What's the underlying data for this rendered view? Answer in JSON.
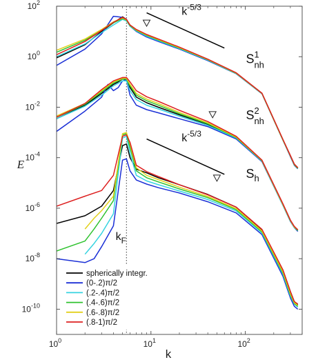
{
  "chart_data": {
    "type": "line",
    "xlabel": "k",
    "ylabel": "E",
    "xscale": "log",
    "yscale": "log",
    "xlim": [
      1,
      400
    ],
    "ylim": [
      1e-11,
      100
    ],
    "x_ticks": [
      {
        "value": 1,
        "base": "10",
        "exp": "0"
      },
      {
        "value": 10,
        "base": "10",
        "exp": "1"
      },
      {
        "value": 100,
        "base": "10",
        "exp": "2"
      }
    ],
    "y_ticks": [
      {
        "value": 100,
        "base": "10",
        "exp": "2"
      },
      {
        "value": 1,
        "base": "10",
        "exp": "0"
      },
      {
        "value": 0.01,
        "base": "10",
        "exp": "-2"
      },
      {
        "value": 0.0001,
        "base": "10",
        "exp": "-4"
      },
      {
        "value": 1e-06,
        "base": "10",
        "exp": "-6"
      },
      {
        "value": 1e-08,
        "base": "10",
        "exp": "-8"
      },
      {
        "value": 1e-10,
        "base": "10",
        "exp": "-10"
      }
    ],
    "forcing_line": {
      "x": 5.5,
      "label": "k",
      "sub": "F"
    },
    "slope_lines": [
      {
        "x": [
          9,
          60
        ],
        "y": [
          55,
          2.2
        ],
        "label": "k",
        "sup": "-5/3",
        "label_x": 25,
        "label_y": 45
      },
      {
        "x": [
          9,
          60
        ],
        "y": [
          0.00055,
          2.2e-05
        ],
        "label": "k",
        "sup": "-5/3",
        "label_x": 25,
        "label_y": 0.00045
      }
    ],
    "group_labels": [
      {
        "text": "S",
        "sup": "1",
        "sub": "nh",
        "x": 120,
        "y": 0.55
      },
      {
        "text": "S",
        "sup": "2",
        "sub": "nh",
        "x": 120,
        "y": 0.0033
      },
      {
        "text": "S",
        "sub": "h",
        "x": 120,
        "y": 1.6e-05
      }
    ],
    "markers": [
      {
        "shape": "triangle-down",
        "x": 9,
        "y": 22
      },
      {
        "shape": "triangle-down",
        "x": 45,
        "y": 0.0052
      },
      {
        "shape": "triangle-down",
        "x": 50,
        "y": 1.6e-05
      }
    ],
    "legend": {
      "position": "bottom-left",
      "entries": [
        {
          "label": "spherically integr.",
          "color": "#000000"
        },
        {
          "label": "(0-.2)π/2",
          "color": "#1a2fd6"
        },
        {
          "label": "(.2-.4)π/2",
          "color": "#36d3e0"
        },
        {
          "label": "(.4-.6)π/2",
          "color": "#2ec22e"
        },
        {
          "label": "(.6-.8)π/2",
          "color": "#e2d01a"
        },
        {
          "label": "(.8-1)π/2",
          "color": "#dd1f1f"
        }
      ]
    },
    "groups": [
      {
        "id": "S1nh",
        "series": [
          {
            "color": "#000000",
            "x": [
              1,
              2,
              3,
              4,
              5,
              5.5,
              6,
              7,
              9,
              12,
              20,
              40,
              80,
              150,
              250,
              300,
              330,
              360
            ],
            "y": [
              0.9,
              3,
              10,
              22,
              38,
              30,
              17,
              11,
              7,
              4.5,
              2.2,
              0.75,
              0.22,
              0.035,
              0.0005,
              0.00012,
              5.5e-05,
              4e-05
            ]
          },
          {
            "color": "#1a2fd6",
            "x": [
              1,
              2,
              3,
              4,
              4.5,
              5,
              5.5,
              6,
              7,
              9,
              12,
              20,
              40,
              80,
              150,
              250,
              300,
              330,
              360
            ],
            "y": [
              0.45,
              2,
              8,
              40,
              38,
              36,
              30,
              16,
              10,
              6,
              4,
              2,
              0.7,
              0.21,
              0.034,
              0.0005,
              0.00011,
              5e-05,
              3.6e-05
            ]
          },
          {
            "color": "#36d3e0",
            "x": [
              1,
              2,
              3,
              4,
              5,
              5.5,
              6,
              7,
              9,
              12,
              20,
              40,
              80,
              150,
              250,
              300,
              330,
              360
            ],
            "y": [
              1,
              3.2,
              9,
              18,
              30,
              26,
              16,
              10.5,
              6.5,
              4.3,
              2.1,
              0.73,
              0.215,
              0.0345,
              0.0005,
              0.000115,
              5.2e-05,
              3.7e-05
            ]
          },
          {
            "color": "#2ec22e",
            "x": [
              1,
              2,
              3,
              4,
              5,
              5.5,
              6,
              7,
              9,
              12,
              20,
              40,
              80,
              150,
              250,
              300,
              330,
              360
            ],
            "y": [
              1.5,
              4.5,
              11,
              22,
              32,
              28,
              17,
              11,
              7,
              4.6,
              2.2,
              0.76,
              0.22,
              0.035,
              0.0005,
              0.000118,
              5.3e-05,
              3.8e-05
            ]
          },
          {
            "color": "#e2d01a",
            "x": [
              1,
              2,
              3,
              4,
              5,
              5.5,
              6,
              7,
              9,
              12,
              20,
              40,
              80,
              150,
              250,
              300,
              330,
              360
            ],
            "y": [
              1.8,
              5,
              12,
              24,
              34,
              29,
              18,
              11.5,
              7.3,
              4.8,
              2.3,
              0.78,
              0.225,
              0.0355,
              0.00052,
              0.00012,
              5.5e-05,
              4e-05
            ]
          },
          {
            "color": "#dd1f1f",
            "x": [
              1,
              2,
              3,
              4,
              5,
              5.5,
              6,
              7,
              9,
              12,
              20,
              40,
              80,
              150,
              250,
              300,
              330,
              360
            ],
            "y": [
              1.2,
              4,
              11,
              23,
              36,
              30,
              18,
              12,
              7.6,
              5,
              2.4,
              0.8,
              0.23,
              0.036,
              0.00053,
              0.000122,
              5.6e-05,
              4e-05
            ]
          }
        ]
      },
      {
        "id": "S2nh",
        "series": [
          {
            "color": "#000000",
            "x": [
              1,
              2,
              3,
              4,
              4.5,
              5,
              5.5,
              6,
              7,
              9,
              12,
              20,
              40,
              80,
              150,
              250,
              300,
              330,
              360
            ],
            "y": [
              0.0035,
              0.012,
              0.035,
              0.08,
              0.1,
              0.13,
              0.12,
              0.06,
              0.025,
              0.015,
              0.01,
              0.005,
              0.0021,
              0.00062,
              7.5e-05,
              1.4e-06,
              3.2e-07,
              1.8e-07,
              1.3e-07
            ]
          },
          {
            "color": "#1a2fd6",
            "x": [
              1,
              2,
              3,
              3.5,
              4,
              4.5,
              5,
              5.5,
              6,
              7,
              9,
              12,
              20,
              40,
              80,
              150,
              250,
              300,
              330,
              360
            ],
            "y": [
              0.0011,
              0.007,
              0.025,
              0.08,
              0.045,
              0.06,
              0.11,
              0.12,
              0.03,
              0.012,
              0.008,
              0.006,
              0.0035,
              0.0017,
              0.00055,
              7e-05,
              1.3e-06,
              3e-07,
              1.7e-07,
              1.2e-07
            ]
          },
          {
            "color": "#36d3e0",
            "x": [
              1,
              2,
              3,
              4,
              5,
              5.5,
              6,
              7,
              9,
              12,
              20,
              40,
              80,
              150,
              250,
              300,
              330,
              360
            ],
            "y": [
              0.0035,
              0.011,
              0.03,
              0.07,
              0.11,
              0.11,
              0.045,
              0.02,
              0.012,
              0.0085,
              0.0044,
              0.0019,
              0.0006,
              7.3e-05,
              1.3e-06,
              3.1e-07,
              1.7e-07,
              1.3e-07
            ]
          },
          {
            "color": "#2ec22e",
            "x": [
              1,
              2,
              3,
              4,
              5,
              5.5,
              6,
              7,
              9,
              12,
              20,
              40,
              80,
              150,
              250,
              300,
              330,
              360
            ],
            "y": [
              0.004,
              0.013,
              0.04,
              0.09,
              0.13,
              0.13,
              0.07,
              0.03,
              0.018,
              0.012,
              0.0055,
              0.0022,
              0.00063,
              7.6e-05,
              1.4e-06,
              3.2e-07,
              1.8e-07,
              1.3e-07
            ]
          },
          {
            "color": "#e2d01a",
            "x": [
              1,
              2,
              3,
              4,
              5,
              5.5,
              6,
              7,
              9,
              12,
              20,
              40,
              80,
              150,
              250,
              300,
              330,
              360
            ],
            "y": [
              0.0045,
              0.014,
              0.045,
              0.1,
              0.14,
              0.14,
              0.08,
              0.035,
              0.021,
              0.014,
              0.0062,
              0.0024,
              0.00066,
              7.8e-05,
              1.4e-06,
              3.3e-07,
              1.8e-07,
              1.4e-07
            ]
          },
          {
            "color": "#dd1f1f",
            "x": [
              1,
              2,
              3,
              4,
              5,
              5.5,
              6,
              7,
              9,
              12,
              20,
              40,
              80,
              150,
              250,
              300,
              330,
              360
            ],
            "y": [
              0.004,
              0.014,
              0.05,
              0.11,
              0.15,
              0.15,
              0.1,
              0.045,
              0.026,
              0.017,
              0.0075,
              0.0027,
              0.0007,
              8e-05,
              1.5e-06,
              3.4e-07,
              1.9e-07,
              1.4e-07
            ]
          }
        ]
      },
      {
        "id": "Sh",
        "series": [
          {
            "color": "#000000",
            "x": [
              1,
              2,
              3,
              4,
              5,
              5.5,
              6,
              7,
              9,
              12,
              20,
              40,
              80,
              150,
              250,
              300,
              330,
              360
            ],
            "y": [
              2.5e-07,
              5e-07,
              1.2e-06,
              5e-06,
              0.0003,
              0.00035,
              0.0001,
              3.5e-05,
              2.5e-05,
              1.6e-05,
              8.5e-06,
              3.5e-06,
              1.1e-06,
              1.4e-07,
              3.5e-09,
              5e-10,
              2e-10,
              1.5e-10
            ]
          },
          {
            "color": "#1a2fd6",
            "x": [
              1,
              2,
              2.5,
              3,
              4,
              5,
              5.5,
              6,
              7,
              9,
              12,
              20,
              40,
              80,
              150,
              250,
              300,
              330,
              360
            ],
            "y": [
              1e-08,
              7e-09,
              1e-08,
              3e-08,
              2e-07,
              8e-05,
              9e-05,
              3e-05,
              1.3e-05,
              9e-06,
              6.5e-06,
              4e-06,
              1.8e-06,
              6.5e-07,
              9e-08,
              2e-09,
              2.8e-10,
              1.3e-10,
              1e-10
            ]
          },
          {
            "color": "#36d3e0",
            "x": [
              2,
              2.5,
              3,
              4,
              5,
              5.5,
              6,
              7,
              9,
              12,
              20,
              40,
              80,
              150,
              250,
              300,
              330,
              360
            ],
            "y": [
              1.5e-08,
              4e-08,
              1e-07,
              6e-07,
              0.0006,
              0.0007,
              0.00015,
              2e-05,
              1.2e-05,
              8.5e-06,
              4.8e-06,
              2.2e-06,
              7.8e-07,
              1.05e-07,
              2.4e-09,
              3.3e-10,
              1.6e-10,
              1.2e-10
            ]
          },
          {
            "color": "#2ec22e",
            "x": [
              1,
              2,
              2.5,
              3,
              4,
              5,
              5.5,
              6,
              7,
              9,
              12,
              20,
              40,
              80,
              150,
              250,
              300,
              330,
              360
            ],
            "y": [
              2e-08,
              5e-08,
              1.5e-07,
              4e-07,
              2e-06,
              0.0008,
              0.0009,
              0.00025,
              3e-05,
              1.6e-05,
              1.1e-05,
              5.8e-06,
              2.6e-06,
              8.8e-07,
              1.15e-07,
              2.7e-09,
              3.7e-10,
              1.7e-10,
              1.3e-10
            ]
          },
          {
            "color": "#e2d01a",
            "x": [
              2,
              2.5,
              3,
              4,
              5,
              5.5,
              6,
              7,
              9,
              12,
              20,
              40,
              80,
              150,
              250,
              300,
              330,
              360
            ],
            "y": [
              1.5e-07,
              4e-07,
              8e-07,
              3e-06,
              0.0009,
              0.001,
              0.00035,
              4e-05,
              2e-05,
              1.35e-05,
              6.8e-06,
              2.9e-06,
              9.5e-07,
              1.25e-07,
              3e-09,
              4.2e-10,
              1.8e-10,
              1.4e-10
            ]
          },
          {
            "color": "#dd1f1f",
            "x": [
              1,
              2,
              3,
              4,
              5,
              5.5,
              6,
              7,
              9,
              12,
              20,
              40,
              80,
              150,
              250,
              300,
              330,
              360
            ],
            "y": [
              1.2e-06,
              3e-06,
              5e-06,
              2e-05,
              0.0007,
              0.0008,
              0.0004,
              5e-05,
              2.8e-05,
              1.8e-05,
              8.5e-06,
              3.4e-06,
              1.1e-06,
              1.45e-07,
              3.6e-09,
              5e-10,
              2e-10,
              1.6e-10
            ]
          }
        ]
      }
    ]
  }
}
